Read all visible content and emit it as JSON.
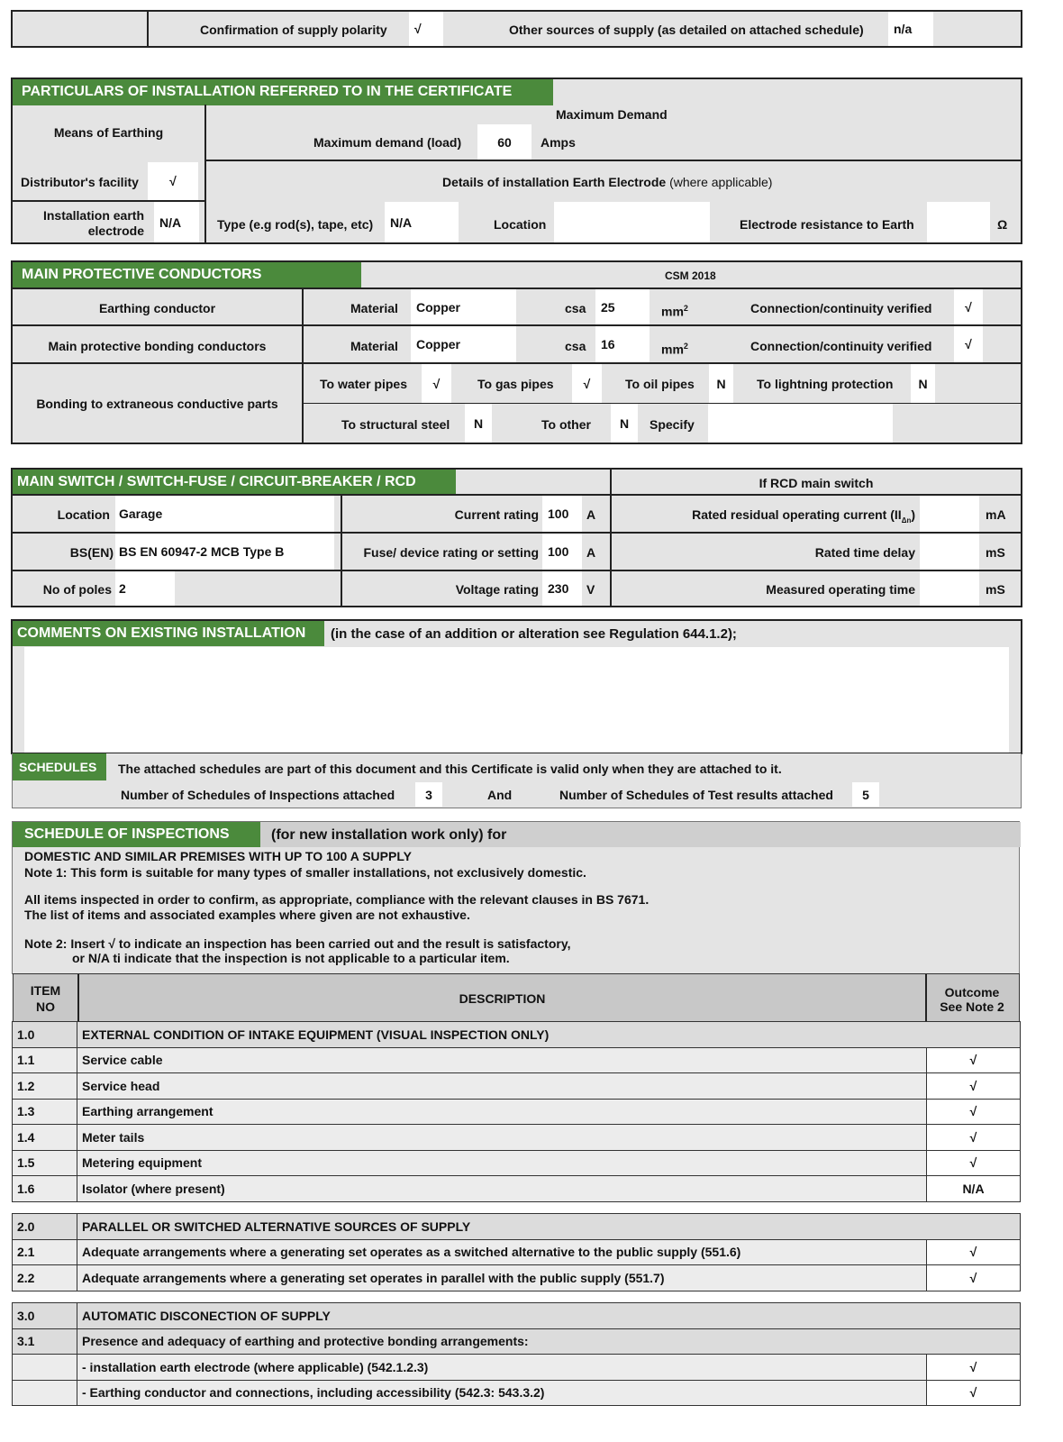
{
  "supply": {
    "polarity_label": "Confirmation of supply polarity",
    "polarity_value": "√",
    "other_label": "Other sources of supply (as detailed on attached schedule)",
    "other_value": "n/a"
  },
  "particulars": {
    "title": "PARTICULARS OF INSTALLATION REFERRED TO IN THE CERTIFICATE",
    "means_label": "Means of Earthing",
    "distributor_label": "Distributor's facility",
    "distributor_value": "√",
    "electrode_label_1": "Installation earth",
    "electrode_label_2": "electrode",
    "electrode_value": "N/A",
    "max_demand_title": "Maximum Demand",
    "max_demand_label": "Maximum demand (load)",
    "max_demand_value": "60",
    "max_demand_unit": "Amps",
    "details_title": "Details of installation Earth Electrode",
    "details_note": "(where applicable)",
    "type_label": "Type (e.g rod(s), tape, etc)",
    "type_value": "N/A",
    "location_label": "Location",
    "location_value": "",
    "resistance_label": "Electrode resistance to Earth",
    "resistance_value": "",
    "resistance_unit": "Ω"
  },
  "conductors": {
    "title": "MAIN PROTECTIVE CONDUCTORS",
    "ref": "CSM 2018",
    "rows": [
      {
        "label": "Earthing conductor",
        "material_label": "Material",
        "material": "Copper",
        "csa_label": "csa",
        "csa": "25",
        "unit": "mm",
        "verified_label": "Connection/continuity verified",
        "verified": "√"
      },
      {
        "label": "Main protective bonding conductors",
        "material_label": "Material",
        "material": "Copper",
        "csa_label": "csa",
        "csa": "16",
        "unit": "mm",
        "verified_label": "Connection/continuity verified",
        "verified": "√"
      }
    ],
    "bonding_label": "Bonding to extraneous conductive parts",
    "water_label": "To water pipes",
    "water": "√",
    "gas_label": "To gas pipes",
    "gas": "√",
    "oil_label": "To oil pipes",
    "oil": "N",
    "lightning_label": "To lightning protection",
    "lightning": "N",
    "steel_label": "To structural steel",
    "steel": "N",
    "other_label": "To other",
    "other": "N",
    "specify_label": "Specify",
    "specify": ""
  },
  "main_switch": {
    "title": "MAIN SWITCH / SWITCH-FUSE / CIRCUIT-BREAKER  / RCD",
    "rcd_title": "If RCD main switch",
    "location_label": "Location",
    "location": "Garage",
    "bs_label": "BS(EN)",
    "bs": "BS EN 60947-2 MCB Type B",
    "poles_label": "No of poles",
    "poles": "2",
    "current_label": "Current rating",
    "current": "100",
    "current_unit": "A",
    "fuse_label": "Fuse/ device rating or setting",
    "fuse": "100",
    "fuse_unit": "A",
    "voltage_label": "Voltage rating",
    "voltage": "230",
    "voltage_unit": "V",
    "residual_label": "Rated residual operating current (II",
    "residual_sub": "Δn",
    "residual_close": ")",
    "residual": "",
    "residual_unit": "mA",
    "delay_label": "Rated time delay",
    "delay": "",
    "delay_unit": "mS",
    "measured_label": "Measured operating time",
    "measured": "",
    "measured_unit": "mS"
  },
  "comments": {
    "title": "COMMENTS ON EXISTING INSTALLATION",
    "note": "(in the case of an addition or alteration see Regulation 644.1.2);",
    "value": ""
  },
  "schedules": {
    "title": "SCHEDULES",
    "text": "The attached schedules are part of this document and this Certificate is valid only when they are attached to it.",
    "inspections_label": "Number of Schedules of Inspections attached",
    "inspections": "3",
    "and": "And",
    "tests_label": "Number of Schedules of Test results attached",
    "tests": "5"
  },
  "inspections": {
    "title": "SCHEDULE OF INSPECTIONS",
    "subtitle": "(for new installation work only) for",
    "line1": "DOMESTIC AND SIMILAR PREMISES WITH UP TO 100 A SUPPLY",
    "line2": "Note 1: This form is suitable for many types of smaller installations, not exclusively domestic.",
    "line3": "All items inspected in order to confirm, as appropriate, compliance with the relevant clauses in BS 7671.",
    "line4": "The list of items and associated examples where given are not exhaustive.",
    "line5": "Note 2: Insert  √  to indicate an inspection has been carried out and the result is satisfactory,",
    "line6": "or N/A ti indicate that the inspection is not applicable to a particular item.",
    "col_item_1": "ITEM",
    "col_item_2": "NO",
    "col_desc": "DESCRIPTION",
    "col_out_1": "Outcome",
    "col_out_2": "See Note 2",
    "groups": [
      {
        "rows": [
          {
            "no": "1.0",
            "desc": "EXTERNAL CONDITION OF INTAKE EQUIPMENT (VISUAL INSPECTION ONLY)",
            "head": true
          },
          {
            "no": "1.1",
            "desc": "Service cable",
            "out": "√"
          },
          {
            "no": "1.2",
            "desc": "Service head",
            "out": "√"
          },
          {
            "no": "1.3",
            "desc": "Earthing arrangement",
            "out": "√"
          },
          {
            "no": "1.4",
            "desc": "Meter tails",
            "out": "√"
          },
          {
            "no": "1.5",
            "desc": "Metering equipment",
            "out": "√"
          },
          {
            "no": "1.6",
            "desc": "Isolator (where present)",
            "out": "N/A"
          }
        ]
      },
      {
        "rows": [
          {
            "no": "2.0",
            "desc": "PARALLEL OR SWITCHED ALTERNATIVE SOURCES OF SUPPLY",
            "head": true
          },
          {
            "no": "2.1",
            "desc": "Adequate arrangements where a generating set operates as a switched alternative to the public supply (551.6)",
            "out": "√"
          },
          {
            "no": "2.2",
            "desc": "Adequate arrangements where a generating set operates in parallel with the public supply (551.7)",
            "out": "√"
          }
        ]
      },
      {
        "rows": [
          {
            "no": "3.0",
            "desc": "AUTOMATIC DISCONECTION OF SUPPLY",
            "head": true
          },
          {
            "no": "3.1",
            "desc": "Presence and adequacy of earthing and protective bonding arrangements:",
            "head": true
          },
          {
            "no": "",
            "desc": "- installation earth electrode (where applicable) (542.1.2.3)",
            "out": "√"
          },
          {
            "no": "",
            "desc": "- Earthing conductor and connections, including accessibility (542.3: 543.3.2)",
            "out": "√"
          }
        ]
      }
    ]
  }
}
